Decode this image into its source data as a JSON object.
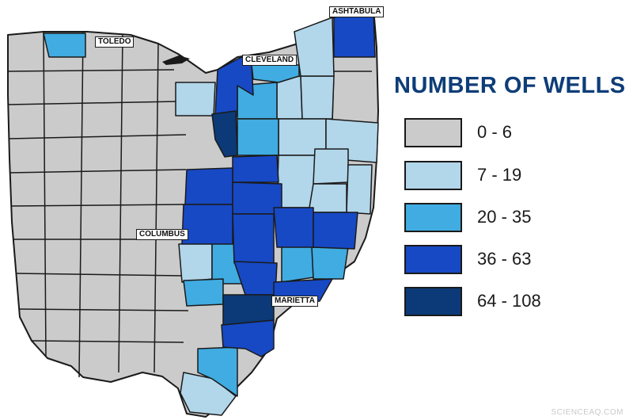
{
  "map": {
    "cities": [
      {
        "name": "TOLEDO"
      },
      {
        "name": "CLEVELAND"
      },
      {
        "name": "ASHTABULA"
      },
      {
        "name": "COLUMBUS"
      },
      {
        "name": "MARIETTA"
      }
    ]
  },
  "legend": {
    "title": "NUMBER OF WELLS",
    "items": [
      {
        "label": "0 - 6",
        "color": "#cbcbcb"
      },
      {
        "label": "7 - 19",
        "color": "#b2d6ea"
      },
      {
        "label": "20 - 35",
        "color": "#40ace1"
      },
      {
        "label": "36 - 63",
        "color": "#1749c5"
      },
      {
        "label": "64 - 108",
        "color": "#0c3a78"
      }
    ]
  },
  "watermark": "SCIENCEAQ.COM"
}
